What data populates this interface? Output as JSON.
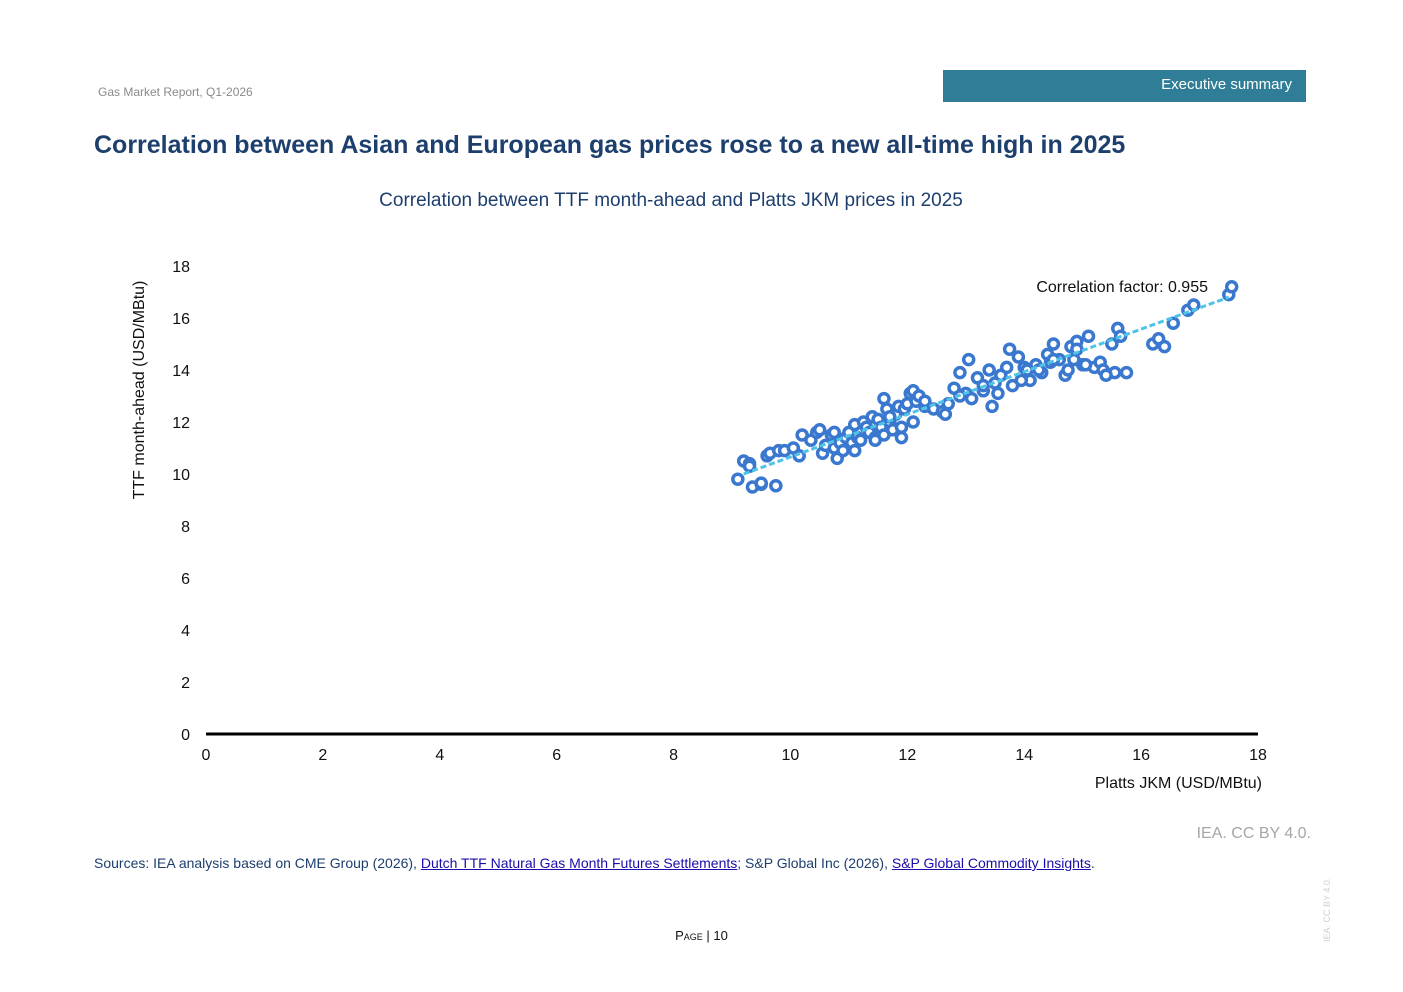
{
  "header": {
    "report_name": "Gas Market Report, Q1-2026",
    "section_label": "Executive summary",
    "section_color": "#2f7d96"
  },
  "headline": "Correlation between Asian and European gas prices rose to a new all-time high in 2025",
  "footer": {
    "attribution": "IEA. CC BY 4.0.",
    "sources_prefix": "Sources: IEA analysis based on CME Group (2026), ",
    "source_link_1": "Dutch TTF Natural Gas Month Futures Settlements",
    "sources_middle": "; S&P Global Inc (2026), ",
    "source_link_2": "S&P Global Commodity Insights",
    "sources_suffix": ".",
    "page_word": "Page",
    "page_separator": " | ",
    "page_number": "10",
    "side_watermark": "IEA. CC BY 4.0."
  },
  "chart_data": {
    "type": "scatter",
    "title": "Correlation between TTF month-ahead and Platts JKM prices in 2025",
    "xlabel": "Platts JKM (USD/MBtu)",
    "ylabel": "TTF month-ahead  (USD/MBtu)",
    "xlim": [
      0,
      18
    ],
    "ylim": [
      0,
      18
    ],
    "xticks": [
      0,
      2,
      4,
      6,
      8,
      10,
      12,
      14,
      16,
      18
    ],
    "yticks": [
      0,
      2,
      4,
      6,
      8,
      10,
      12,
      14,
      16,
      18
    ],
    "grid": false,
    "annotation": "Correlation factor: 0.955",
    "marker_color": "#3a78cf",
    "trendline_color": "#4ec3e8",
    "trendline": {
      "x": [
        9.2,
        17.5
      ],
      "y": [
        10.0,
        16.8
      ]
    },
    "series": [
      {
        "x": [
          9.1,
          9.2,
          9.3,
          9.35,
          9.5,
          9.6,
          9.75,
          9.3,
          9.5,
          9.65,
          9.8,
          9.9,
          10.05,
          10.2,
          10.35,
          10.45,
          10.55,
          10.6,
          10.7,
          10.75,
          10.8,
          10.85,
          10.9,
          10.95,
          11.0,
          11.05,
          11.1,
          11.15,
          11.2,
          11.25,
          11.3,
          11.35,
          11.4,
          11.45,
          11.5,
          11.55,
          11.6,
          11.65,
          11.7,
          11.75,
          11.8,
          11.85,
          11.9,
          11.95,
          12.0,
          12.05,
          12.1,
          12.15,
          12.2,
          12.3,
          12.45,
          12.6,
          12.7,
          12.8,
          12.9,
          13.0,
          13.05,
          13.1,
          13.2,
          13.3,
          13.4,
          13.45,
          13.5,
          13.6,
          13.7,
          13.75,
          13.8,
          13.9,
          14.0,
          14.05,
          14.1,
          14.2,
          14.3,
          14.4,
          14.45,
          14.5,
          14.6,
          14.7,
          14.75,
          14.8,
          14.85,
          14.9,
          15.0,
          15.1,
          15.2,
          15.3,
          15.35,
          15.5,
          15.55,
          15.6,
          15.65,
          15.75,
          16.2,
          16.3,
          16.4,
          16.55,
          16.8,
          16.9,
          17.5,
          17.55,
          10.15,
          10.5,
          10.75,
          11.1,
          11.45,
          11.6,
          11.7,
          11.9,
          12.3,
          12.9,
          13.3,
          13.55,
          13.95,
          14.25,
          14.5,
          14.9,
          15.4,
          15.05,
          12.65,
          12.1
        ],
        "y": [
          9.8,
          10.5,
          10.4,
          9.5,
          9.6,
          10.7,
          9.55,
          10.3,
          9.65,
          10.8,
          10.9,
          10.9,
          11.0,
          11.5,
          11.3,
          11.6,
          10.8,
          11.1,
          11.5,
          11.0,
          10.6,
          11.2,
          10.9,
          11.4,
          11.6,
          11.2,
          11.9,
          11.4,
          11.3,
          12.0,
          11.8,
          11.6,
          12.2,
          11.4,
          12.1,
          11.8,
          12.9,
          12.5,
          12.0,
          11.7,
          12.3,
          12.6,
          11.4,
          12.5,
          12.7,
          13.1,
          13.2,
          12.8,
          13.0,
          12.6,
          12.5,
          12.4,
          12.7,
          13.3,
          13.9,
          13.1,
          14.4,
          12.9,
          13.7,
          13.2,
          14.0,
          12.6,
          13.5,
          13.8,
          14.1,
          14.8,
          13.4,
          14.5,
          14.1,
          14.0,
          13.6,
          14.2,
          13.9,
          14.6,
          14.3,
          15.0,
          14.4,
          13.8,
          14.0,
          14.9,
          14.4,
          15.1,
          14.2,
          15.3,
          14.1,
          14.3,
          14.0,
          15.0,
          13.9,
          15.6,
          15.3,
          13.9,
          15.0,
          15.2,
          14.9,
          15.8,
          16.3,
          16.5,
          16.9,
          17.2,
          10.7,
          11.7,
          11.6,
          10.9,
          11.3,
          11.5,
          12.2,
          11.8,
          12.8,
          13.0,
          13.4,
          13.1,
          13.6,
          14.0,
          14.4,
          14.8,
          13.8,
          14.2,
          12.3,
          12.0
        ]
      }
    ]
  }
}
